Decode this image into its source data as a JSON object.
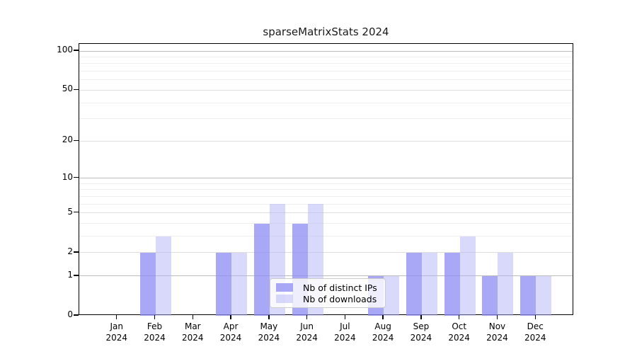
{
  "chart_data": {
    "type": "bar",
    "title": "sparseMatrixStats 2024",
    "x_categories_line1": [
      "Jan",
      "Feb",
      "Mar",
      "Apr",
      "May",
      "Jun",
      "Jul",
      "Aug",
      "Sep",
      "Oct",
      "Nov",
      "Dec"
    ],
    "x_categories_line2": "2024",
    "series": [
      {
        "name": "Nb of distinct IPs",
        "values": [
          0,
          2,
          0,
          2,
          4,
          4,
          0,
          1,
          2,
          2,
          1,
          1
        ]
      },
      {
        "name": "Nb of downloads",
        "values": [
          0,
          3,
          0,
          2,
          6,
          6,
          0,
          1,
          2,
          3,
          2,
          1
        ]
      }
    ],
    "y_axis": {
      "scale": "log1p",
      "ylim": [
        0,
        100
      ],
      "tick_labels": [
        0,
        1,
        2,
        5,
        10,
        20,
        50,
        100
      ],
      "grid_major": [
        1,
        10,
        100
      ],
      "grid_mid": [
        2,
        5,
        20,
        50
      ],
      "grid_minor": [
        3,
        4,
        6,
        7,
        8,
        9,
        30,
        40,
        60,
        70,
        80,
        90
      ]
    },
    "legend": {
      "position": "lower center"
    },
    "colors": {
      "ips_bar": "rgba(140,140,243,0.76)",
      "downloads_bar": "rgba(179,179,247,0.5)",
      "ips_swatch": "rgba(140,140,243,0.76)",
      "downloads_swatch": "rgba(179,179,247,0.5)",
      "grid_major": "#bbbbbb",
      "grid_mid": "#dedede",
      "grid_minor": "#efefef"
    }
  }
}
